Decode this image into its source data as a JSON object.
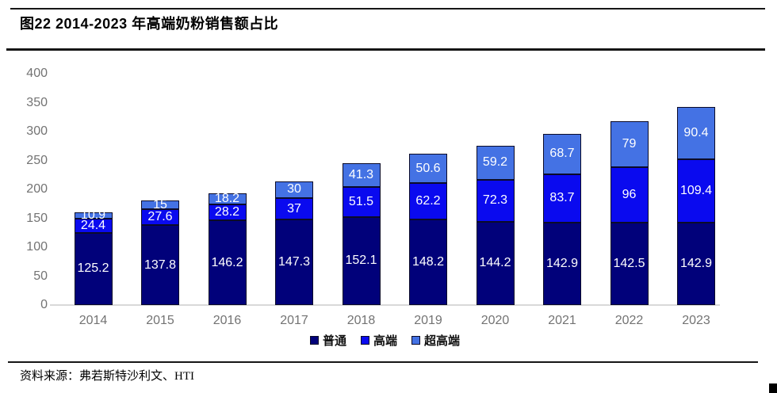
{
  "header": {
    "title": "图22 2014-2023 年高端奶粉销售额占比"
  },
  "footer": {
    "source": "资料来源：弗若斯特沙利文、HTI"
  },
  "chart_data": {
    "type": "bar",
    "stacked": true,
    "title": "图22 2014-2023 年高端奶粉销售额占比",
    "categories": [
      "2014",
      "2015",
      "2016",
      "2017",
      "2018",
      "2019",
      "2020",
      "2021",
      "2022",
      "2023"
    ],
    "series": [
      {
        "name": "普通",
        "color": "#01017a",
        "values": [
          125.2,
          137.8,
          146.2,
          147.3,
          152.1,
          148.2,
          144.2,
          142.9,
          142.5,
          142.9
        ]
      },
      {
        "name": "高端",
        "color": "#0a0aef",
        "values": [
          24.4,
          27.6,
          28.2,
          37,
          51.5,
          62.2,
          72.3,
          83.7,
          96,
          109.4
        ]
      },
      {
        "name": "超高端",
        "color": "#4472e4",
        "values": [
          10.9,
          15,
          18.2,
          30,
          41.3,
          50.6,
          59.2,
          68.7,
          79,
          90.4
        ]
      }
    ],
    "y_ticks": [
      0,
      50,
      100,
      150,
      200,
      250,
      300,
      350,
      400
    ],
    "ylim": [
      0,
      400
    ],
    "xlabel": "",
    "ylabel": "",
    "grid": false,
    "value_labels": true,
    "legend_position": "bottom",
    "colors": {
      "value_label_text": "#ffffff",
      "axis_text": "#737373",
      "baseline": "#d9d9d9",
      "segment_border": "#0b0b28"
    }
  }
}
